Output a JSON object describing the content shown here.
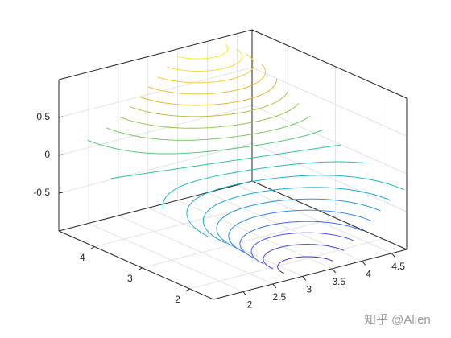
{
  "chart_data": {
    "type": "contour3",
    "xlim": [
      1.5,
      4.75
    ],
    "ylim": [
      1.5,
      4.75
    ],
    "zlim": [
      -1,
      1
    ],
    "xticks": [
      2,
      2.5,
      3,
      3.5,
      4,
      4.5
    ],
    "yticks": [
      2,
      3,
      4
    ],
    "zticks": [
      -0.5,
      0,
      0.5
    ],
    "grid": true,
    "levels": [
      -0.9,
      -0.8,
      -0.7,
      -0.6,
      -0.5,
      -0.4,
      -0.3,
      -0.2,
      -0.1,
      0,
      0.1,
      0.2,
      0.3,
      0.4,
      0.5,
      0.6,
      0.7,
      0.8,
      0.9
    ],
    "colormap": [
      "#3e26a8",
      "#4748f0",
      "#2e87f7",
      "#12b1d6",
      "#2cc5a0",
      "#86ca50",
      "#e1b72a",
      "#fcd33a",
      "#f9fb0e"
    ],
    "watermark": "知乎 @Alien"
  }
}
